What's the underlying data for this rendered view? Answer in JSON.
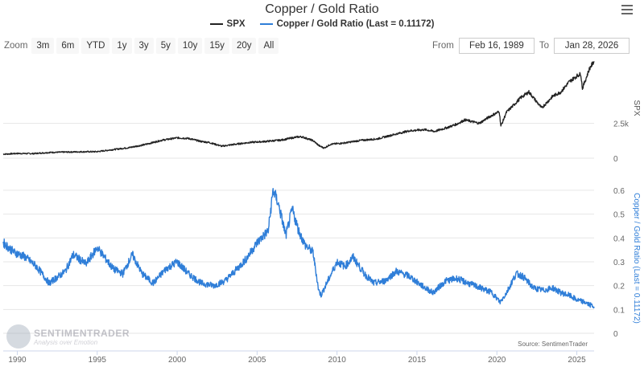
{
  "title": "Copper / Gold Ratio",
  "legend": [
    {
      "label": "SPX",
      "color": "#222222"
    },
    {
      "label": "Copper / Gold Ratio (Last = 0.11172)",
      "color": "#2f7ed8"
    }
  ],
  "zoom": {
    "label": "Zoom",
    "buttons": [
      "3m",
      "6m",
      "YTD",
      "1y",
      "3y",
      "5y",
      "10y",
      "15y",
      "20y",
      "All"
    ]
  },
  "range": {
    "from_label": "From",
    "from_value": "Feb 16, 1989",
    "to_label": "To",
    "to_value": "Jan 28, 2026"
  },
  "watermark": {
    "brand": "SENTIMENTRADER",
    "tagline": "Analysis over Emotion"
  },
  "source": "Source: SentimenTrader",
  "chart_data": {
    "type": "line",
    "x_ticks": [
      "1990",
      "1995",
      "2000",
      "2005",
      "2010",
      "2015",
      "2020",
      "2025"
    ],
    "x_range": [
      1989.12,
      2026.08
    ],
    "panels": [
      {
        "name": "SPX",
        "axis_label": "SPX",
        "y_ticks": [
          "0",
          "2.5k"
        ],
        "y_tick_values": [
          0,
          2500
        ],
        "y_range": [
          0,
          7200
        ],
        "color": "#222222",
        "x": [
          1989.12,
          1990.0,
          1991.0,
          1992.0,
          1993.0,
          1994.0,
          1995.0,
          1996.0,
          1997.0,
          1998.0,
          1999.0,
          2000.0,
          2000.7,
          2001.5,
          2002.0,
          2002.8,
          2003.5,
          2004.5,
          2005.5,
          2006.5,
          2007.5,
          2007.8,
          2008.5,
          2008.9,
          2009.2,
          2009.6,
          2010.5,
          2011.5,
          2012.5,
          2013.5,
          2014.5,
          2015.5,
          2016.1,
          2016.9,
          2017.5,
          2018.0,
          2018.9,
          2019.5,
          2020.15,
          2020.25,
          2020.6,
          2021.0,
          2021.5,
          2022.0,
          2022.8,
          2023.5,
          2024.0,
          2024.5,
          2025.0,
          2025.25,
          2025.35,
          2025.8,
          2026.08
        ],
        "y": [
          290,
          340,
          330,
          410,
          440,
          460,
          470,
          620,
          760,
          980,
          1280,
          1460,
          1420,
          1200,
          1130,
          860,
          980,
          1130,
          1200,
          1300,
          1520,
          1540,
          1260,
          880,
          730,
          1000,
          1100,
          1280,
          1380,
          1680,
          1960,
          2050,
          1920,
          2200,
          2450,
          2750,
          2500,
          2950,
          3350,
          2300,
          3300,
          3750,
          4350,
          4750,
          3600,
          4450,
          4750,
          5450,
          5900,
          6050,
          5000,
          6450,
          6950
        ]
      },
      {
        "name": "Copper / Gold Ratio (Last = 0.11172)",
        "axis_label": "Copper / Gold Ratio (Last = 0.11172)",
        "y_ticks": [
          "0",
          "0.1",
          "0.2",
          "0.3",
          "0.4",
          "0.5",
          "0.6"
        ],
        "y_tick_values": [
          0,
          0.1,
          0.2,
          0.3,
          0.4,
          0.5,
          0.6
        ],
        "y_range": [
          0,
          0.63
        ],
        "color": "#2f7ed8",
        "x": [
          1989.12,
          1989.8,
          1990.5,
          1991.2,
          1992.0,
          1993.0,
          1993.5,
          1994.3,
          1995.0,
          1996.0,
          1996.6,
          1997.2,
          1997.8,
          1998.5,
          1999.3,
          2000.0,
          2000.7,
          2001.5,
          2002.3,
          2003.0,
          2003.6,
          2004.3,
          2005.0,
          2005.7,
          2006.0,
          2006.3,
          2006.8,
          2007.2,
          2007.6,
          2008.0,
          2008.5,
          2008.85,
          2009.0,
          2009.5,
          2010.0,
          2010.5,
          2011.0,
          2011.7,
          2012.3,
          2013.0,
          2013.7,
          2014.5,
          2015.3,
          2016.0,
          2016.8,
          2017.5,
          2018.2,
          2019.0,
          2019.7,
          2020.2,
          2020.6,
          2021.2,
          2021.6,
          2022.3,
          2022.9,
          2023.5,
          2024.0,
          2024.5,
          2025.0,
          2025.5,
          2025.8,
          2026.08
        ],
        "y": [
          0.38,
          0.34,
          0.32,
          0.28,
          0.21,
          0.26,
          0.33,
          0.29,
          0.36,
          0.27,
          0.25,
          0.33,
          0.25,
          0.21,
          0.27,
          0.3,
          0.25,
          0.21,
          0.2,
          0.22,
          0.26,
          0.31,
          0.38,
          0.43,
          0.6,
          0.55,
          0.41,
          0.52,
          0.43,
          0.37,
          0.34,
          0.18,
          0.16,
          0.23,
          0.3,
          0.28,
          0.32,
          0.25,
          0.21,
          0.22,
          0.26,
          0.24,
          0.2,
          0.17,
          0.22,
          0.23,
          0.21,
          0.19,
          0.17,
          0.13,
          0.17,
          0.25,
          0.24,
          0.19,
          0.18,
          0.19,
          0.17,
          0.16,
          0.14,
          0.13,
          0.12,
          0.11172
        ]
      }
    ],
    "grid": true,
    "legend_position": "top-center"
  }
}
